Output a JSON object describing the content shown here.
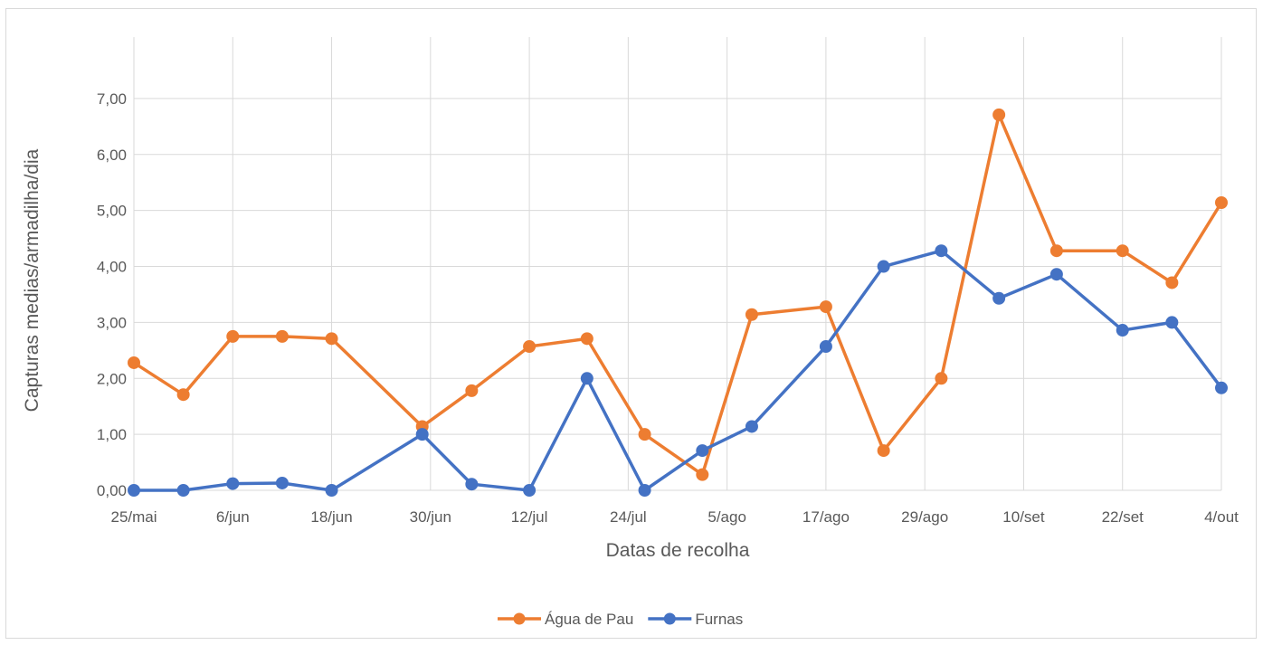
{
  "chart_data": {
    "type": "line",
    "title": "",
    "xlabel": "Datas de recolha",
    "ylabel": "Capturas medias/armadilha/dia",
    "ylim": [
      0,
      7.5
    ],
    "y_ticks": [
      "0,00",
      "1,00",
      "2,00",
      "3,00",
      "4,00",
      "5,00",
      "6,00",
      "7,00"
    ],
    "x_tick_labels": [
      "25/mai",
      "6/jun",
      "18/jun",
      "30/jun",
      "12/jul",
      "24/jul",
      "5/ago",
      "17/ago",
      "29/ago",
      "10/set",
      "22/set",
      "4/out"
    ],
    "x_range": [
      "25/mai",
      "4/out"
    ],
    "grid": true,
    "legend_position": "bottom",
    "x": [
      "25/mai",
      "31/mai",
      "6/jun",
      "12/jun",
      "18/jun",
      "29/jun",
      "5/jul",
      "12/jul",
      "19/jul",
      "26/jul",
      "2/ago",
      "8/ago",
      "17/ago",
      "24/ago",
      "31/ago",
      "7/set",
      "14/set",
      "22/set",
      "28/set",
      "4/out"
    ],
    "series": [
      {
        "name": "Água de Pau",
        "color": "#ed7d31",
        "values": [
          2.28,
          1.71,
          2.75,
          2.75,
          2.71,
          1.14,
          1.78,
          2.57,
          2.71,
          1.0,
          0.28,
          3.14,
          3.28,
          0.71,
          2.0,
          6.71,
          4.28,
          4.28,
          3.71,
          5.14
        ]
      },
      {
        "name": "Furnas",
        "color": "#4472c4",
        "values": [
          0.0,
          0.0,
          0.12,
          0.13,
          0.0,
          1.0,
          0.11,
          0.0,
          2.0,
          0.0,
          0.71,
          1.14,
          2.57,
          4.0,
          4.28,
          3.43,
          3.86,
          2.86,
          3.0,
          1.83
        ]
      }
    ]
  }
}
